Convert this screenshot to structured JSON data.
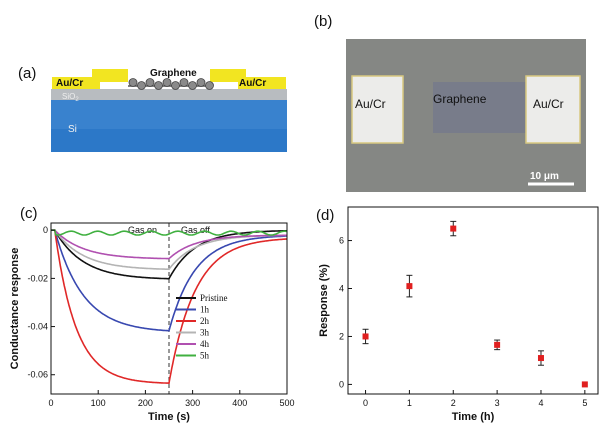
{
  "panels": {
    "a": {
      "label": "(a)",
      "layer_labels": {
        "electrode_left": "Au/Cr",
        "electrode_right": "Au/Cr",
        "graphene": "Graphene",
        "oxide": "SiO",
        "oxide_sub": "2",
        "substrate": "Si"
      },
      "colors": {
        "electrode": "#f2e521",
        "oxide": "#b8bcc0",
        "substrate": "#2c78c8",
        "graphene_atom": "#8a8a8a"
      }
    },
    "b": {
      "label": "(b)",
      "labels": {
        "pad_left": "Au/Cr",
        "pad_right": "Au/Cr",
        "channel": "Graphene",
        "scale_bar": "10 μm"
      },
      "colors": {
        "background": "#858784",
        "pad": "#ececea",
        "channel": "#787c8a"
      }
    }
  },
  "chart_data": [
    {
      "panel_label": "(c)",
      "type": "line",
      "xlabel": "Time (s)",
      "ylabel": "Conductance response",
      "xlim": [
        0,
        500
      ],
      "ylim": [
        -0.068,
        0.003
      ],
      "xticks": [
        "0",
        "100",
        "200",
        "300",
        "400",
        "500"
      ],
      "yticks": [
        "0",
        "-0.02",
        "-0.04",
        "-0.06"
      ],
      "grid": false,
      "legend_position": "right",
      "annotations": {
        "left": "Gas on",
        "right": "Gas off",
        "switch_time": 250
      },
      "series": [
        {
          "name": "Pristine",
          "color": "#111111",
          "sat": -0.0205,
          "rec": 0.0
        },
        {
          "name": "1h",
          "color": "#3848b0",
          "sat": -0.0425,
          "rec": -0.002
        },
        {
          "name": "2h",
          "color": "#e02828",
          "sat": -0.0638,
          "rec": -0.003
        },
        {
          "name": "3h",
          "color": "#b4b4b4",
          "sat": -0.0165,
          "rec": -0.002
        },
        {
          "name": "4h",
          "color": "#b050b0",
          "sat": -0.012,
          "rec": -0.002
        },
        {
          "name": "5h",
          "color": "#40b040",
          "sat": -0.002,
          "rec": 0.0
        }
      ]
    },
    {
      "panel_label": "(d)",
      "type": "scatter",
      "xlabel": "Time (h)",
      "ylabel": "Response (%)",
      "xlim": [
        -0.4,
        5.3
      ],
      "ylim": [
        -0.4,
        7.4
      ],
      "xticks": [
        "0",
        "1",
        "2",
        "3",
        "4",
        "5"
      ],
      "yticks": [
        "0",
        "2",
        "4",
        "6"
      ],
      "grid": false,
      "marker_color": "#e02020",
      "x": [
        0,
        1,
        2,
        3,
        4,
        5
      ],
      "y": [
        2.0,
        4.1,
        6.5,
        1.65,
        1.1,
        0.0
      ],
      "yerr": [
        0.3,
        0.45,
        0.3,
        0.2,
        0.3,
        0.0
      ]
    }
  ]
}
